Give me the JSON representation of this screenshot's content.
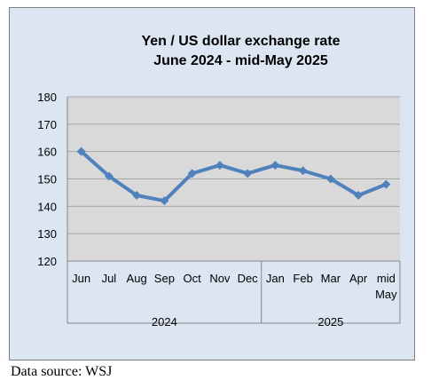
{
  "chart_data": {
    "type": "line",
    "title": [
      "Yen / US dollar exchange rate",
      "June 2024 - mid-May 2025"
    ],
    "categories": [
      "Jun",
      "Jul",
      "Aug",
      "Sep",
      "Oct",
      "Nov",
      "Dec",
      "Jan",
      "Feb",
      "Mar",
      "Apr",
      "mid May"
    ],
    "category_lines": [
      [
        "Jun"
      ],
      [
        "Jul"
      ],
      [
        "Aug"
      ],
      [
        "Sep"
      ],
      [
        "Oct"
      ],
      [
        "Nov"
      ],
      [
        "Dec"
      ],
      [
        "Jan"
      ],
      [
        "Feb"
      ],
      [
        "Mar"
      ],
      [
        "Apr"
      ],
      [
        "mid",
        "May"
      ]
    ],
    "groups": [
      {
        "label": "2024",
        "count": 7
      },
      {
        "label": "2025",
        "count": 5
      }
    ],
    "series": [
      {
        "values": [
          160,
          151,
          144,
          142,
          152,
          155,
          152,
          155,
          153,
          150,
          144,
          148
        ]
      }
    ],
    "ylim": [
      120,
      180
    ],
    "yticks": [
      120,
      130,
      140,
      150,
      160,
      170,
      180
    ],
    "grid": true,
    "colors": {
      "line": "#4f81bd",
      "plot_bg": "#d9d9d9",
      "frame_bg": "#dce6f2",
      "grid": "#a6a6a6"
    }
  },
  "source": "Data source: WSJ"
}
